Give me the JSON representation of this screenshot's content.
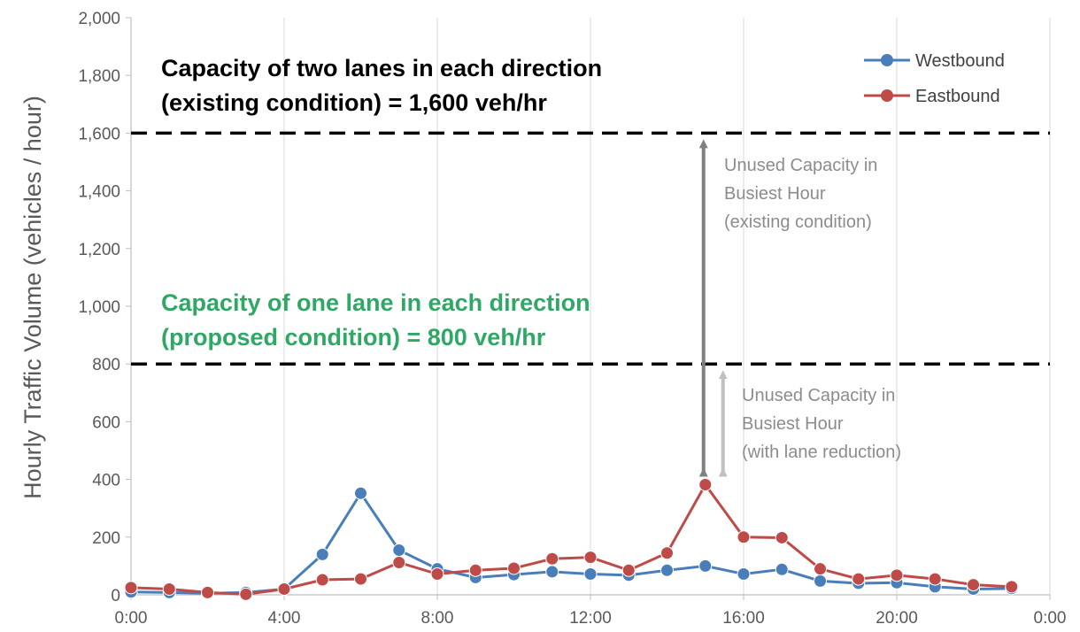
{
  "chart_data": {
    "type": "line",
    "title": "",
    "xlabel": "",
    "ylabel": "Hourly Traffic Volume (vehicles / hour)",
    "x_tick_labels": [
      "0:00",
      "4:00",
      "8:00",
      "12:00",
      "16:00",
      "20:00",
      "0:00"
    ],
    "y_tick_labels": [
      "0",
      "200",
      "400",
      "600",
      "800",
      "1,000",
      "1,200",
      "1,400",
      "1,600",
      "1,800",
      "2,000"
    ],
    "xlim": [
      0,
      24
    ],
    "ylim": [
      0,
      2000
    ],
    "grid": "vertical",
    "legend_position": "top-right",
    "x": [
      0,
      1,
      2,
      3,
      4,
      5,
      6,
      7,
      8,
      9,
      10,
      11,
      12,
      13,
      14,
      15,
      16,
      17,
      18,
      19,
      20,
      21,
      22,
      23
    ],
    "series": [
      {
        "name": "Westbound",
        "color": "#4a7ebb",
        "values": [
          10,
          8,
          5,
          8,
          20,
          140,
          352,
          155,
          90,
          60,
          70,
          80,
          72,
          68,
          85,
          100,
          72,
          88,
          48,
          40,
          42,
          28,
          20,
          22
        ]
      },
      {
        "name": "Eastbound",
        "color": "#be4b48",
        "values": [
          25,
          20,
          8,
          2,
          20,
          52,
          55,
          112,
          72,
          85,
          92,
          125,
          130,
          85,
          145,
          382,
          200,
          198,
          90,
          55,
          68,
          55,
          35,
          28
        ]
      }
    ],
    "reference_lines": [
      {
        "value": 1600,
        "label_line1": "Capacity of two lanes in each direction",
        "label_line2": "(existing condition) = 1,600 veh/hr",
        "color": "#000000"
      },
      {
        "value": 800,
        "label_line1": "Capacity of one lane in each direction",
        "label_line2": "(proposed condition) = 800 veh/hr",
        "color": "#2fa866"
      }
    ],
    "annotations": [
      {
        "x": 15,
        "from": 382,
        "to": 1600,
        "color": "#808080",
        "lines": [
          "Unused Capacity in",
          "Busiest Hour",
          "(existing condition)"
        ]
      },
      {
        "x": 15,
        "from": 382,
        "to": 800,
        "color": "#c0c0c0",
        "lines": [
          "Unused Capacity in",
          "Busiest Hour",
          "(with lane reduction)"
        ]
      }
    ]
  }
}
